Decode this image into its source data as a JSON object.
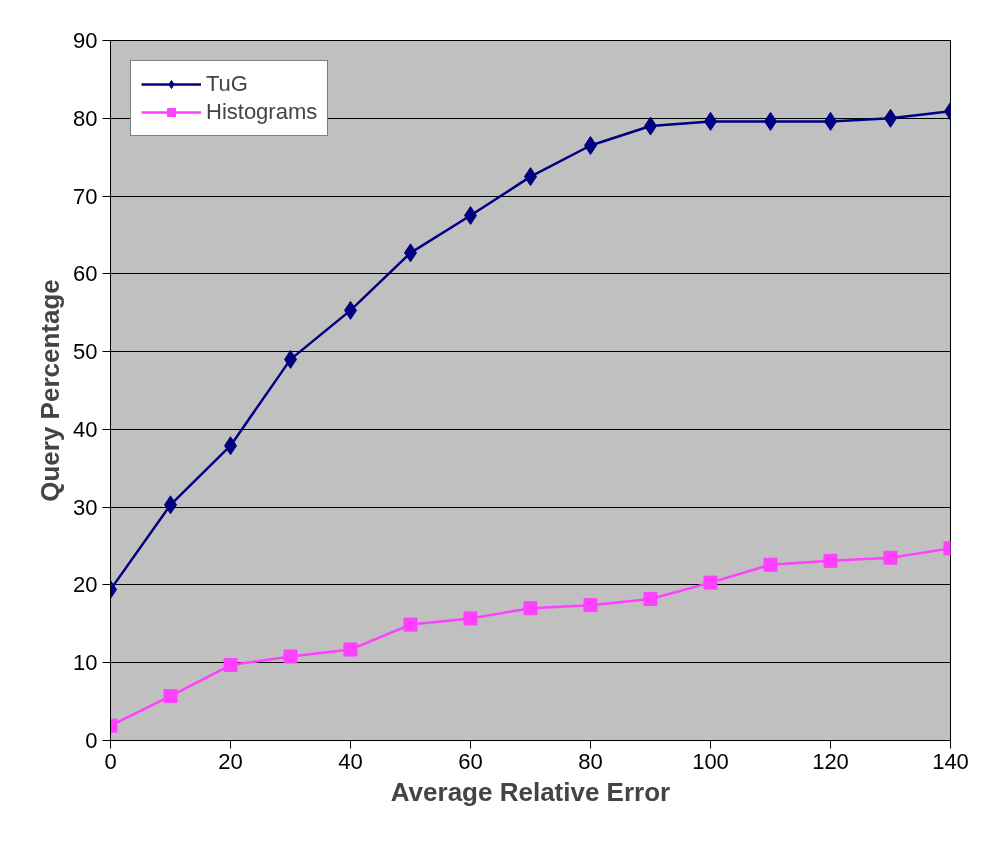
{
  "chart_data": {
    "type": "line",
    "xlabel": "Average Relative Error",
    "ylabel": "Query Percentage",
    "x": [
      0,
      10,
      20,
      30,
      40,
      50,
      60,
      70,
      80,
      90,
      100,
      110,
      120,
      130,
      140
    ],
    "series": [
      {
        "name": "TuG",
        "color": "#000080",
        "marker": "diamond",
        "values": [
          19.4,
          30.3,
          37.9,
          49.0,
          55.3,
          62.7,
          67.5,
          72.5,
          76.5,
          79.0,
          79.6,
          79.6,
          79.6,
          80.0,
          80.9
        ]
      },
      {
        "name": "Histograms",
        "color": "#ff40ff",
        "marker": "square",
        "values": [
          1.9,
          5.7,
          9.7,
          10.8,
          11.7,
          14.9,
          15.7,
          17.0,
          17.4,
          18.2,
          20.3,
          22.6,
          23.1,
          23.5,
          24.7
        ]
      }
    ],
    "xlim": [
      0,
      140
    ],
    "xticks": [
      0,
      20,
      40,
      60,
      80,
      100,
      120,
      140
    ],
    "ylim": [
      0,
      90
    ],
    "yticks": [
      0,
      10,
      20,
      30,
      40,
      50,
      60,
      70,
      80,
      90
    ],
    "grid": "y",
    "legend": "top left",
    "line_style": "solid"
  }
}
